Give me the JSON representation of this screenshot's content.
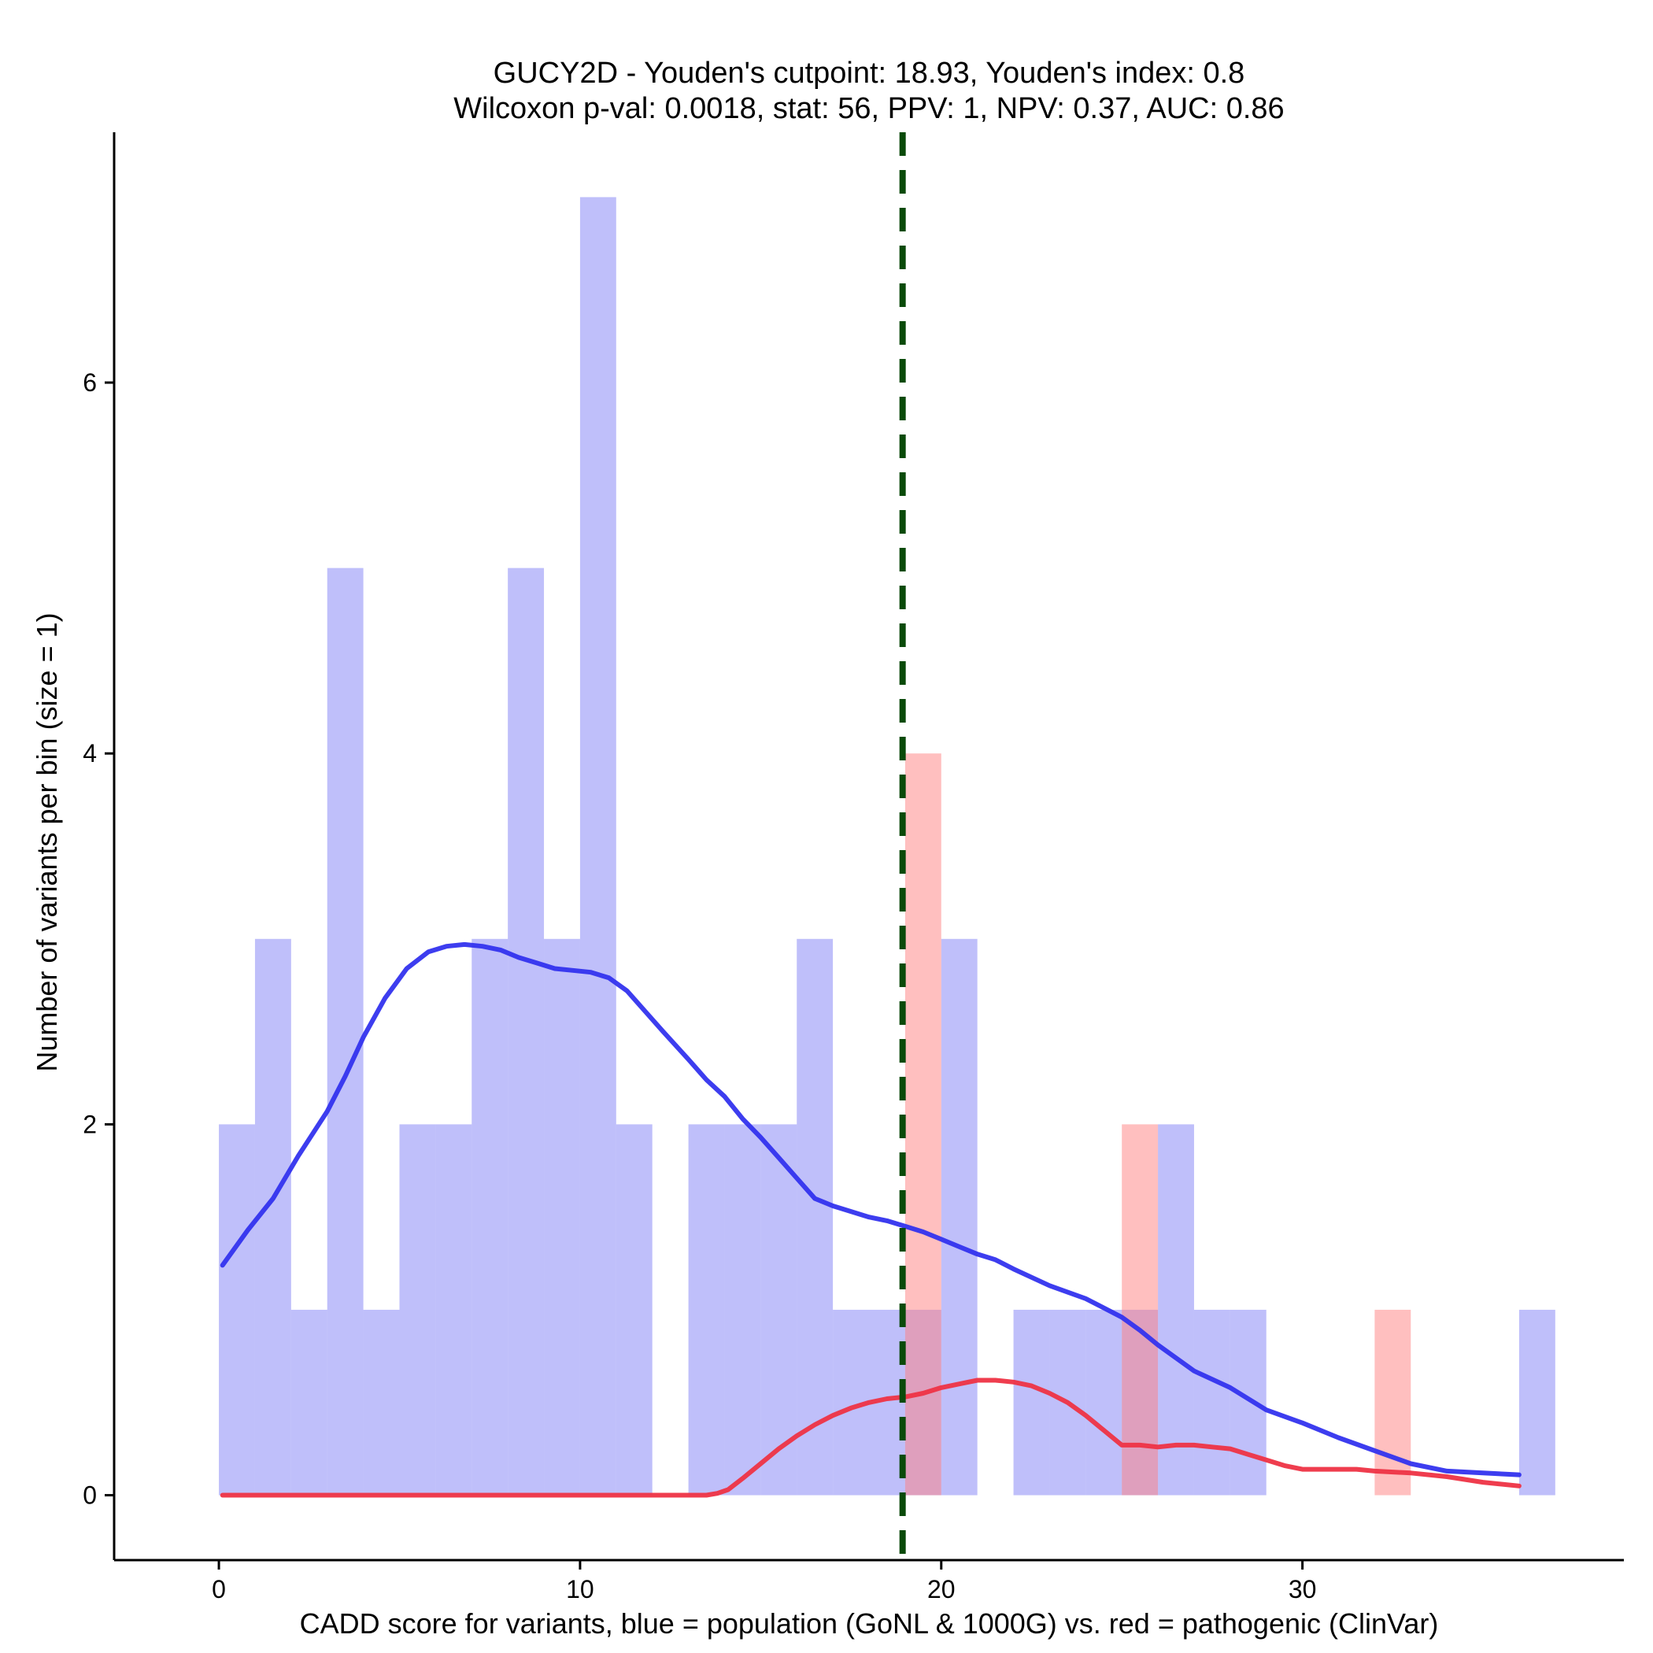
{
  "chart_data": {
    "type": "bar",
    "title_lines": [
      "GUCY2D - Youden's cutpoint: 18.93, Youden's index: 0.8",
      "Wilcoxon p-val: 0.0018, stat: 56, PPV: 1, NPV: 0.37, AUC: 0.86"
    ],
    "xlabel": "CADD score for variants, blue = population (GoNL & 1000G) vs. red = pathogenic (ClinVar)",
    "ylabel": "Number of variants per bin (size = 1)",
    "xlim": [
      -2.9,
      38.9
    ],
    "ylim": [
      -0.35,
      7.35
    ],
    "xticks": [
      0,
      10,
      20,
      30
    ],
    "yticks": [
      0,
      2,
      4,
      6
    ],
    "bin_width": 1,
    "cutpoint": 18.93,
    "colors": {
      "population": "#8080f5",
      "pathogenic": "#ff8080",
      "population_density": "#3333ee",
      "pathogenic_density": "#ee3344",
      "cutpoint_line": "#0a4a0a"
    },
    "series": [
      {
        "name": "population",
        "bins": [
          {
            "start": 0,
            "count": 2
          },
          {
            "start": 1,
            "count": 3
          },
          {
            "start": 2,
            "count": 1
          },
          {
            "start": 3,
            "count": 5
          },
          {
            "start": 4,
            "count": 1
          },
          {
            "start": 5,
            "count": 2
          },
          {
            "start": 6,
            "count": 2
          },
          {
            "start": 7,
            "count": 3
          },
          {
            "start": 8,
            "count": 5
          },
          {
            "start": 9,
            "count": 3
          },
          {
            "start": 10,
            "count": 7
          },
          {
            "start": 11,
            "count": 2
          },
          {
            "start": 13,
            "count": 2
          },
          {
            "start": 14,
            "count": 2
          },
          {
            "start": 15,
            "count": 2
          },
          {
            "start": 16,
            "count": 3
          },
          {
            "start": 17,
            "count": 1
          },
          {
            "start": 18,
            "count": 1
          },
          {
            "start": 19,
            "count": 1
          },
          {
            "start": 20,
            "count": 3
          },
          {
            "start": 22,
            "count": 1
          },
          {
            "start": 23,
            "count": 1
          },
          {
            "start": 24,
            "count": 1
          },
          {
            "start": 25,
            "count": 1
          },
          {
            "start": 26,
            "count": 2
          },
          {
            "start": 27,
            "count": 1
          },
          {
            "start": 28,
            "count": 1
          },
          {
            "start": 36,
            "count": 1
          }
        ]
      },
      {
        "name": "pathogenic",
        "bins": [
          {
            "start": 19,
            "count": 4
          },
          {
            "start": 25,
            "count": 2
          },
          {
            "start": 32,
            "count": 1
          }
        ]
      }
    ],
    "density_curves": [
      {
        "name": "population",
        "x": [
          0.1,
          0.8,
          1.5,
          2.2,
          3.0,
          3.5,
          4.0,
          4.6,
          5.2,
          5.8,
          6.3,
          6.8,
          7.3,
          7.8,
          8.3,
          8.8,
          9.3,
          9.8,
          10.3,
          10.8,
          11.3,
          11.8,
          12.3,
          13.0,
          13.5,
          14.0,
          14.5,
          15.0,
          15.5,
          16.0,
          16.5,
          17.0,
          17.5,
          18.0,
          18.5,
          19.0,
          19.5,
          20.0,
          20.5,
          21.0,
          21.5,
          22.0,
          23.0,
          24.0,
          25.0,
          25.5,
          26.0,
          27.0,
          28.0,
          29.0,
          30.0,
          31.0,
          32.0,
          33.0,
          34.0,
          35.0,
          36.0
        ],
        "y": [
          1.24,
          1.43,
          1.6,
          1.83,
          2.07,
          2.26,
          2.47,
          2.68,
          2.84,
          2.93,
          2.96,
          2.97,
          2.96,
          2.94,
          2.9,
          2.87,
          2.84,
          2.83,
          2.82,
          2.79,
          2.72,
          2.61,
          2.5,
          2.35,
          2.24,
          2.15,
          2.03,
          1.93,
          1.82,
          1.71,
          1.6,
          1.56,
          1.53,
          1.5,
          1.48,
          1.45,
          1.42,
          1.38,
          1.34,
          1.3,
          1.27,
          1.22,
          1.13,
          1.06,
          0.96,
          0.89,
          0.81,
          0.67,
          0.58,
          0.46,
          0.39,
          0.31,
          0.24,
          0.17,
          0.13,
          0.12,
          0.11
        ]
      },
      {
        "name": "pathogenic",
        "x": [
          0.1,
          2.0,
          4.0,
          6.0,
          8.0,
          10.0,
          12.0,
          13.5,
          13.8,
          14.1,
          14.5,
          15.0,
          15.5,
          16.0,
          16.5,
          17.0,
          17.5,
          18.0,
          18.5,
          19.0,
          19.5,
          20.0,
          20.5,
          21.0,
          21.5,
          22.0,
          22.5,
          23.0,
          23.5,
          24.0,
          24.5,
          25.0,
          25.5,
          26.0,
          26.5,
          27.0,
          27.5,
          28.0,
          28.5,
          29.0,
          29.5,
          30.0,
          30.5,
          31.0,
          31.5,
          32.0,
          33.0,
          34.0,
          35.0,
          36.0
        ],
        "y": [
          0,
          0,
          0,
          0,
          0,
          0,
          0,
          0,
          0.01,
          0.03,
          0.09,
          0.17,
          0.25,
          0.32,
          0.38,
          0.43,
          0.47,
          0.5,
          0.52,
          0.53,
          0.55,
          0.58,
          0.6,
          0.62,
          0.62,
          0.61,
          0.59,
          0.55,
          0.5,
          0.43,
          0.35,
          0.27,
          0.27,
          0.26,
          0.27,
          0.27,
          0.26,
          0.25,
          0.22,
          0.19,
          0.16,
          0.14,
          0.14,
          0.14,
          0.14,
          0.13,
          0.12,
          0.1,
          0.07,
          0.05
        ]
      }
    ]
  }
}
